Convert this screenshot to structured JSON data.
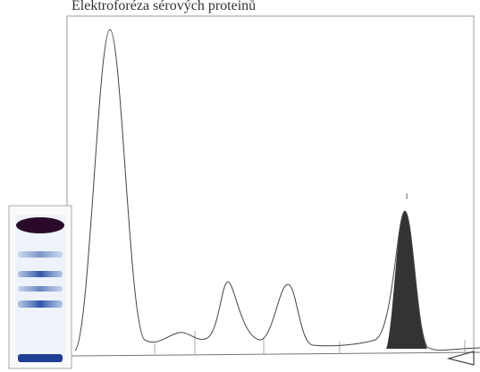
{
  "header": {
    "title": "Elektroforéza sérových proteinů"
  },
  "peak_label": "1"
}
